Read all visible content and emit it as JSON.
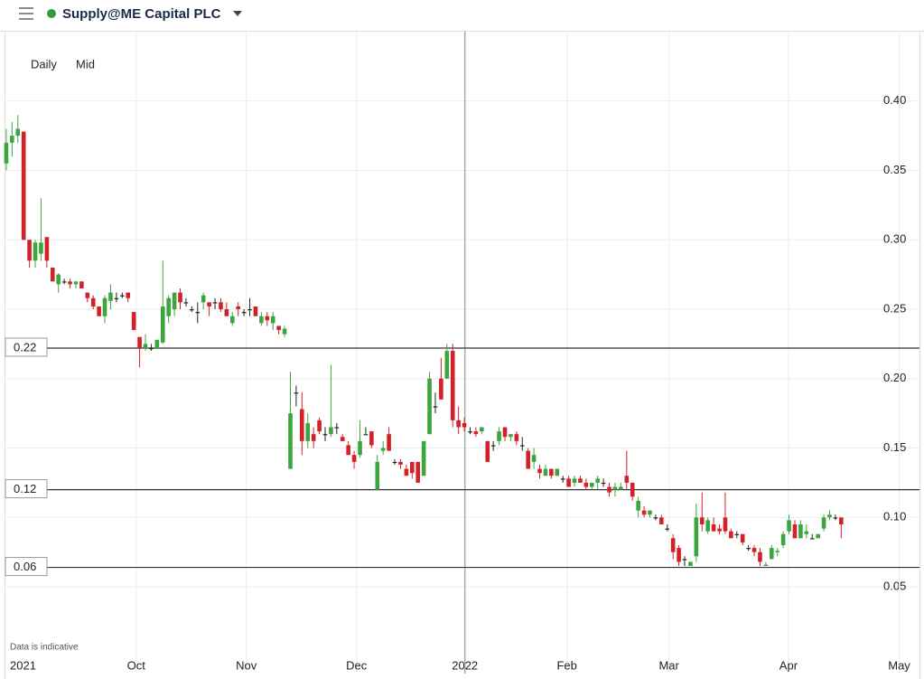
{
  "header": {
    "title": "Supply@ME Capital PLC"
  },
  "controls": {
    "interval": "Daily",
    "price": "Mid"
  },
  "footnote": "Data is indicative",
  "chart_data": {
    "type": "candlestick",
    "up_color": "#3da53d",
    "down_color": "#d42029",
    "flat_color": "#222222",
    "grid": true,
    "x": [
      0,
      1,
      2,
      3,
      4,
      5,
      6,
      7,
      8,
      9,
      10,
      11,
      12,
      13,
      14,
      15,
      16,
      17,
      18,
      19,
      20,
      21,
      22,
      23,
      24,
      25,
      26,
      27,
      28,
      29,
      30,
      31,
      32,
      33,
      34,
      35,
      36,
      37,
      38,
      39,
      40,
      41,
      42,
      43,
      44,
      45,
      46,
      47,
      48,
      49,
      50,
      51,
      52,
      53,
      54,
      55,
      56,
      57,
      58,
      59,
      60,
      61,
      62,
      63,
      64,
      65,
      66,
      67,
      68,
      69,
      70,
      71,
      72,
      73,
      74,
      75,
      76,
      77,
      78,
      79,
      80,
      81,
      82,
      83,
      84,
      85,
      86,
      87,
      88,
      89,
      90,
      91,
      92,
      93,
      94,
      95,
      96,
      97,
      98,
      99,
      100,
      101,
      102,
      103,
      104,
      105,
      106,
      107,
      108,
      109,
      110,
      111,
      112,
      113,
      114,
      115,
      116,
      117,
      118,
      119,
      120,
      121,
      122,
      123,
      124,
      125,
      126,
      127,
      128,
      129,
      130,
      131,
      132,
      133,
      134,
      135,
      136,
      137,
      138,
      139,
      140,
      141,
      142,
      143,
      144
    ],
    "open": [
      0.355,
      0.37,
      0.375,
      0.378,
      0.3,
      0.285,
      0.29,
      0.302,
      0.28,
      0.268,
      0.27,
      0.27,
      0.268,
      0.27,
      0.262,
      0.258,
      0.252,
      0.245,
      0.256,
      0.258,
      0.26,
      0.262,
      0.248,
      0.23,
      0.222,
      0.222,
      0.222,
      0.226,
      0.245,
      0.25,
      0.262,
      0.255,
      0.25,
      0.248,
      0.255,
      0.255,
      0.255,
      0.255,
      0.25,
      0.24,
      0.252,
      0.248,
      0.25,
      0.252,
      0.24,
      0.245,
      0.24,
      0.238,
      0.232,
      0.135,
      0.19,
      0.178,
      0.155,
      0.16,
      0.17,
      0.16,
      0.16,
      0.165,
      0.158,
      0.152,
      0.145,
      0.145,
      0.16,
      0.162,
      0.12,
      0.148,
      0.16,
      0.14,
      0.14,
      0.135,
      0.14,
      0.14,
      0.13,
      0.16,
      0.18,
      0.2,
      0.2,
      0.22,
      0.17,
      0.168,
      0.162,
      0.162,
      0.162,
      0.155,
      0.152,
      0.155,
      0.165,
      0.158,
      0.16,
      0.152,
      0.148,
      0.14,
      0.135,
      0.13,
      0.135,
      0.13,
      0.128,
      0.128,
      0.125,
      0.128,
      0.125,
      0.122,
      0.125,
      0.125,
      0.122,
      0.12,
      0.12,
      0.13,
      0.125,
      0.105,
      0.105,
      0.102,
      0.1,
      0.1,
      0.092,
      0.085,
      0.078,
      0.07,
      0.065,
      0.072,
      0.1,
      0.09,
      0.095,
      0.092,
      0.1,
      0.09,
      0.088,
      0.088,
      0.078,
      0.078,
      0.075,
      0.065,
      0.07,
      0.075,
      0.08,
      0.09,
      0.095,
      0.085,
      0.088,
      0.085,
      0.085,
      0.092,
      0.1,
      0.1,
      0.1
    ],
    "high": [
      0.38,
      0.385,
      0.39,
      0.378,
      0.3,
      0.3,
      0.33,
      0.302,
      0.28,
      0.276,
      0.272,
      0.272,
      0.27,
      0.27,
      0.262,
      0.26,
      0.252,
      0.26,
      0.268,
      0.262,
      0.262,
      0.262,
      0.248,
      0.23,
      0.232,
      0.225,
      0.228,
      0.285,
      0.26,
      0.262,
      0.265,
      0.258,
      0.252,
      0.255,
      0.262,
      0.255,
      0.258,
      0.258,
      0.255,
      0.248,
      0.255,
      0.25,
      0.258,
      0.252,
      0.248,
      0.248,
      0.248,
      0.238,
      0.238,
      0.205,
      0.195,
      0.19,
      0.175,
      0.165,
      0.172,
      0.165,
      0.21,
      0.168,
      0.16,
      0.155,
      0.148,
      0.17,
      0.165,
      0.162,
      0.145,
      0.155,
      0.165,
      0.142,
      0.142,
      0.138,
      0.14,
      0.14,
      0.155,
      0.205,
      0.19,
      0.215,
      0.225,
      0.225,
      0.18,
      0.172,
      0.165,
      0.165,
      0.165,
      0.155,
      0.155,
      0.165,
      0.165,
      0.16,
      0.162,
      0.158,
      0.15,
      0.15,
      0.138,
      0.138,
      0.135,
      0.135,
      0.13,
      0.13,
      0.13,
      0.13,
      0.128,
      0.125,
      0.13,
      0.128,
      0.125,
      0.125,
      0.125,
      0.148,
      0.125,
      0.115,
      0.108,
      0.105,
      0.102,
      0.102,
      0.095,
      0.088,
      0.08,
      0.072,
      0.068,
      0.11,
      0.118,
      0.1,
      0.1,
      0.095,
      0.118,
      0.092,
      0.09,
      0.088,
      0.08,
      0.08,
      0.078,
      0.068,
      0.08,
      0.078,
      0.09,
      0.102,
      0.098,
      0.098,
      0.095,
      0.088,
      0.088,
      0.102,
      0.105,
      0.102,
      0.1
    ],
    "low": [
      0.35,
      0.36,
      0.37,
      0.3,
      0.28,
      0.28,
      0.285,
      0.28,
      0.27,
      0.262,
      0.268,
      0.265,
      0.265,
      0.265,
      0.255,
      0.25,
      0.245,
      0.24,
      0.25,
      0.255,
      0.258,
      0.255,
      0.235,
      0.208,
      0.22,
      0.22,
      0.222,
      0.225,
      0.24,
      0.245,
      0.25,
      0.252,
      0.248,
      0.24,
      0.25,
      0.245,
      0.25,
      0.248,
      0.245,
      0.238,
      0.245,
      0.245,
      0.245,
      0.245,
      0.238,
      0.238,
      0.235,
      0.232,
      0.23,
      0.135,
      0.18,
      0.145,
      0.15,
      0.15,
      0.16,
      0.155,
      0.158,
      0.16,
      0.155,
      0.145,
      0.135,
      0.143,
      0.16,
      0.15,
      0.12,
      0.145,
      0.148,
      0.138,
      0.135,
      0.13,
      0.128,
      0.125,
      0.13,
      0.16,
      0.175,
      0.185,
      0.2,
      0.165,
      0.16,
      0.162,
      0.16,
      0.158,
      0.16,
      0.14,
      0.148,
      0.152,
      0.155,
      0.155,
      0.152,
      0.148,
      0.135,
      0.135,
      0.128,
      0.13,
      0.128,
      0.13,
      0.125,
      0.122,
      0.122,
      0.125,
      0.12,
      0.12,
      0.12,
      0.122,
      0.115,
      0.115,
      0.12,
      0.12,
      0.112,
      0.1,
      0.1,
      0.1,
      0.098,
      0.095,
      0.09,
      0.07,
      0.065,
      0.065,
      0.065,
      0.068,
      0.09,
      0.088,
      0.09,
      0.088,
      0.088,
      0.085,
      0.085,
      0.08,
      0.076,
      0.072,
      0.065,
      0.065,
      0.07,
      0.072,
      0.078,
      0.088,
      0.085,
      0.085,
      0.085,
      0.085,
      0.085,
      0.09,
      0.098,
      0.098,
      0.085
    ],
    "close": [
      0.37,
      0.375,
      0.38,
      0.3,
      0.285,
      0.298,
      0.298,
      0.285,
      0.27,
      0.275,
      0.27,
      0.268,
      0.27,
      0.265,
      0.258,
      0.252,
      0.245,
      0.258,
      0.262,
      0.258,
      0.26,
      0.258,
      0.235,
      0.222,
      0.225,
      0.222,
      0.228,
      0.252,
      0.258,
      0.262,
      0.255,
      0.255,
      0.25,
      0.248,
      0.26,
      0.252,
      0.255,
      0.25,
      0.245,
      0.245,
      0.25,
      0.248,
      0.25,
      0.245,
      0.245,
      0.242,
      0.245,
      0.235,
      0.236,
      0.175,
      0.19,
      0.155,
      0.168,
      0.155,
      0.162,
      0.16,
      0.165,
      0.165,
      0.155,
      0.145,
      0.14,
      0.155,
      0.16,
      0.152,
      0.14,
      0.15,
      0.148,
      0.14,
      0.138,
      0.13,
      0.132,
      0.125,
      0.155,
      0.2,
      0.18,
      0.185,
      0.22,
      0.17,
      0.165,
      0.165,
      0.162,
      0.16,
      0.165,
      0.14,
      0.152,
      0.162,
      0.158,
      0.16,
      0.155,
      0.152,
      0.135,
      0.145,
      0.132,
      0.135,
      0.13,
      0.135,
      0.128,
      0.122,
      0.128,
      0.125,
      0.122,
      0.125,
      0.128,
      0.125,
      0.118,
      0.122,
      0.122,
      0.125,
      0.115,
      0.112,
      0.102,
      0.105,
      0.1,
      0.095,
      0.092,
      0.075,
      0.068,
      0.07,
      0.068,
      0.1,
      0.095,
      0.098,
      0.09,
      0.09,
      0.09,
      0.085,
      0.088,
      0.082,
      0.078,
      0.075,
      0.068,
      0.066,
      0.078,
      0.076,
      0.088,
      0.098,
      0.085,
      0.095,
      0.09,
      0.085,
      0.088,
      0.1,
      0.102,
      0.1,
      0.095
    ],
    "xlim": [
      -0.3,
      157.5
    ],
    "xticks": [
      {
        "value": 2,
        "label": "2021"
      },
      {
        "value": 22.4,
        "label": "Oct"
      },
      {
        "value": 41.4,
        "label": "Nov"
      },
      {
        "value": 60.4,
        "label": "Dec"
      },
      {
        "value": 79.1,
        "label": "2022"
      },
      {
        "value": 96.7,
        "label": "Feb"
      },
      {
        "value": 114.3,
        "label": "Mar"
      },
      {
        "value": 134.9,
        "label": "Apr"
      },
      {
        "value": 154,
        "label": "May"
      }
    ],
    "ylim": [
      -0.0125,
      0.45
    ],
    "yticks": [
      {
        "value": 0.05,
        "label": "0.05"
      },
      {
        "value": 0.1,
        "label": "0.10"
      },
      {
        "value": 0.15,
        "label": "0.15"
      },
      {
        "value": 0.2,
        "label": "0.20"
      },
      {
        "value": 0.25,
        "label": "0.25"
      },
      {
        "value": 0.3,
        "label": "0.30"
      },
      {
        "value": 0.35,
        "label": "0.35"
      },
      {
        "value": 0.4,
        "label": "0.40"
      }
    ],
    "reference_lines": [
      {
        "value": 0.222,
        "label": "0.22"
      },
      {
        "value": 0.12,
        "label": "0.12"
      },
      {
        "value": 0.064,
        "label": "0.06"
      }
    ],
    "crosshair_x": 79.1
  }
}
